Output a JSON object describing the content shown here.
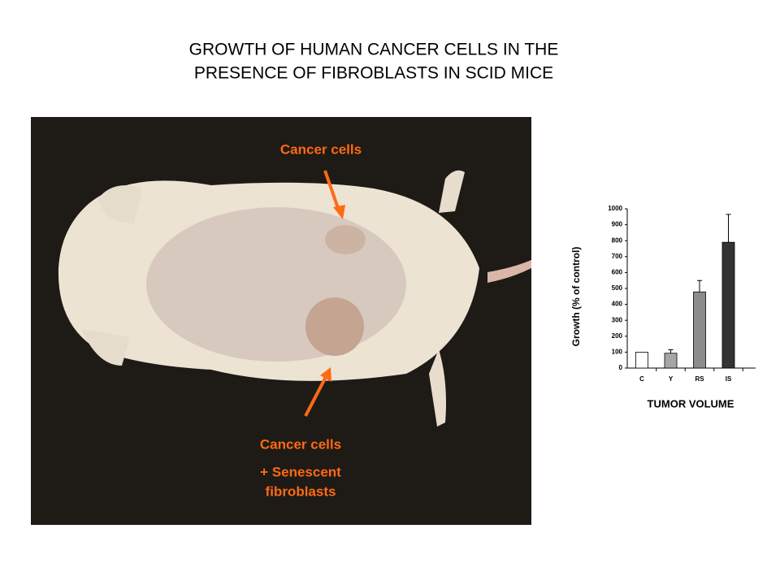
{
  "title_lines": [
    "GROWTH OF HUMAN CANCER CELLS IN THE",
    "PRESENCE OF FIBROBLASTS IN SCID MICE"
  ],
  "photo_labels": {
    "top": "Cancer cells",
    "bottom": [
      "Cancer cells",
      "+ Senescent",
      "fibroblasts"
    ]
  },
  "chart_data": {
    "type": "bar",
    "categories": [
      "C",
      "Y",
      "RS",
      "IS"
    ],
    "values": [
      100,
      93,
      478,
      790
    ],
    "errors": [
      0,
      22,
      72,
      175
    ],
    "colors": [
      "#ffffff",
      "#a6a6a6",
      "#8c8c8c",
      "#333333"
    ],
    "ylabel": "Growth (% of control)",
    "xlabel": "TUMOR VOLUME",
    "ylim": [
      0,
      1000
    ],
    "yticks": [
      0,
      100,
      200,
      300,
      400,
      500,
      600,
      700,
      800,
      900,
      1000
    ]
  }
}
